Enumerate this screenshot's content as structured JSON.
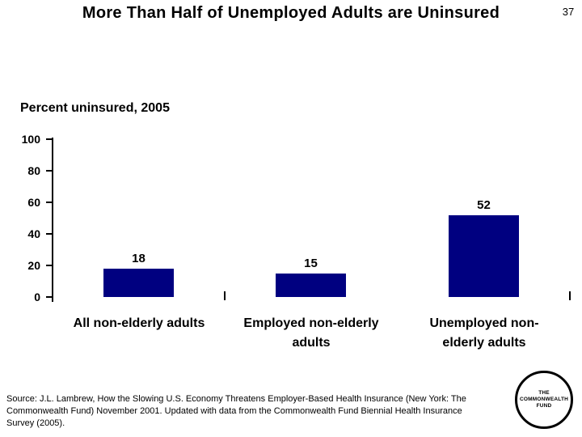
{
  "slide": {
    "title": "More Than Half of Unemployed Adults are Uninsured",
    "page_number": "37",
    "background_color": "#ffffff"
  },
  "chart": {
    "heading": "Percent uninsured, 2005",
    "y_axis_labels": [
      "100",
      "80",
      "60",
      "40",
      "20",
      "0"
    ],
    "categories": [
      {
        "line1": "All non-elderly adults",
        "line2": ""
      },
      {
        "line1": "Employed non-elderly",
        "line2": "adults"
      },
      {
        "line1": "Unemployed non-",
        "line2": "elderly adults"
      }
    ]
  },
  "chart_data": {
    "type": "bar",
    "title": "Percent uninsured, 2005",
    "categories": [
      "All non-elderly adults",
      "Employed non-elderly adults",
      "Unemployed non-elderly adults"
    ],
    "values": [
      18,
      15,
      52
    ],
    "value_labels": [
      "18",
      "15",
      "52"
    ],
    "xlabel": "",
    "ylabel": "",
    "ylim": [
      0,
      100
    ],
    "y_ticks": [
      0,
      20,
      40,
      60,
      80,
      100
    ],
    "grid": false,
    "legend": false,
    "bar_color": "#000080",
    "text_color": "#000000"
  },
  "footer": {
    "source_lines": [
      "Source: J.L. Lambrew, How the Slowing U.S. Economy Threatens Employer-Based Health Insurance (New York: The",
      "Commonwealth Fund) November 2001. Updated with data from the Commonwealth Fund Biennial Health Insurance",
      "Survey (2005)."
    ],
    "source_full": "Source: J.L. Lambrew, How the Slowing U.S. Economy Threatens Employer-Based Health Insurance (New York: The Commonwealth Fund) November 2001. Updated with data from the Commonwealth Fund Biennial Health Insurance Survey (2005).",
    "logo_lines": [
      "THE",
      "COMMONWEALTH",
      "FUND"
    ]
  }
}
